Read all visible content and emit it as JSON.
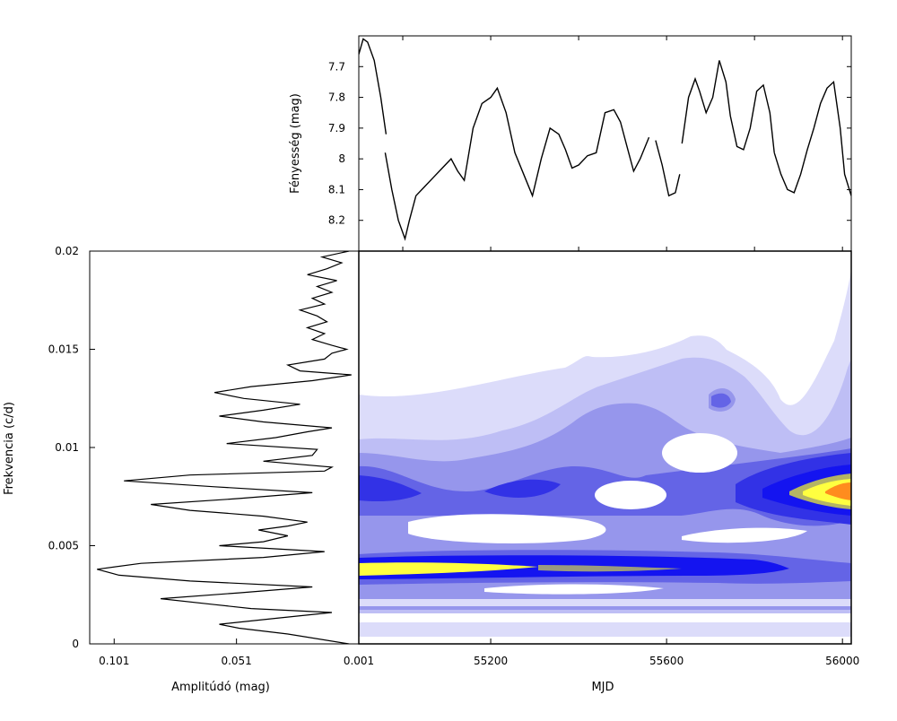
{
  "chart_data": [
    {
      "type": "line",
      "panel": "light-curve",
      "ylabel": "Fényesség (mag)",
      "y_inverted": true,
      "ylim": [
        8.3,
        7.6
      ],
      "xlim": [
        54900,
        56020
      ],
      "y_ticks": [
        "7.7",
        "7.8",
        "7.9",
        "8",
        "8.1",
        "8.2"
      ],
      "y_tick_values": [
        7.7,
        7.8,
        7.9,
        8.0,
        8.1,
        8.2
      ],
      "series": [
        {
          "x": [
            54900,
            54910,
            54920,
            54935,
            54950,
            54962
          ],
          "y": [
            7.66,
            7.61,
            7.62,
            7.68,
            7.8,
            7.92
          ]
        },
        {
          "x": [
            54960,
            54975,
            54990,
            55005,
            55015,
            55030,
            55050,
            55070,
            55090,
            55110,
            55125,
            55140,
            55160,
            55180,
            55200,
            55215,
            55235,
            55255,
            55275,
            55295,
            55315,
            55335,
            55355,
            55370,
            55385,
            55400,
            55420,
            55440,
            55460,
            55480,
            55495,
            55510,
            55525,
            55540,
            55560
          ],
          "y": [
            7.98,
            8.1,
            8.2,
            8.26,
            8.2,
            8.12,
            8.09,
            8.06,
            8.03,
            8.0,
            8.04,
            8.07,
            7.9,
            7.82,
            7.8,
            7.77,
            7.85,
            7.98,
            8.05,
            8.12,
            8.0,
            7.9,
            7.92,
            7.97,
            8.03,
            8.02,
            7.99,
            7.98,
            7.85,
            7.84,
            7.88,
            7.96,
            8.04,
            8.0,
            7.93
          ]
        },
        {
          "x": [
            55575,
            55590,
            55605,
            55620,
            55630
          ],
          "y": [
            7.94,
            8.02,
            8.12,
            8.11,
            8.05
          ]
        },
        {
          "x": [
            55635,
            55650,
            55665,
            55675,
            55690,
            55705,
            55720,
            55735,
            55745,
            55760,
            55775,
            55790,
            55805,
            55820,
            55835,
            55845
          ],
          "y": [
            7.95,
            7.8,
            7.74,
            7.78,
            7.85,
            7.8,
            7.68,
            7.75,
            7.86,
            7.96,
            7.97,
            7.9,
            7.78,
            7.76,
            7.85,
            7.98
          ]
        },
        {
          "x": [
            55845,
            55860,
            55875,
            55890,
            55905,
            55920,
            55935,
            55950,
            55965,
            55980,
            55995,
            56005,
            56020
          ],
          "y": [
            7.98,
            8.05,
            8.1,
            8.11,
            8.05,
            7.97,
            7.9,
            7.82,
            7.77,
            7.75,
            7.9,
            8.05,
            8.12
          ]
        }
      ]
    },
    {
      "type": "line",
      "panel": "amplitude-spectrum",
      "xlabel": "Amplitúdó (mag)",
      "ylabel": "Frekvencia (c/d)",
      "x_inverted": true,
      "xlim": [
        0.111,
        0.001
      ],
      "ylim": [
        0,
        0.02
      ],
      "x_ticks": [
        "0.101",
        "0.051",
        "0.001"
      ],
      "x_tick_values": [
        0.101,
        0.051,
        0.001
      ],
      "y_ticks": [
        "0",
        "0.005",
        "0.01",
        "0.015",
        "0.02"
      ],
      "y_tick_values": [
        0,
        0.005,
        0.01,
        0.015,
        0.02
      ],
      "freq": [
        0,
        0.0005,
        0.0008,
        0.001,
        0.0013,
        0.0016,
        0.0018,
        0.002,
        0.0023,
        0.0026,
        0.0029,
        0.0032,
        0.0035,
        0.0038,
        0.0041,
        0.0044,
        0.0047,
        0.005,
        0.0052,
        0.0055,
        0.0058,
        0.006,
        0.0062,
        0.0065,
        0.0068,
        0.0071,
        0.0074,
        0.0077,
        0.008,
        0.0083,
        0.0086,
        0.0088,
        0.009,
        0.0093,
        0.0096,
        0.0099,
        0.0102,
        0.0105,
        0.0108,
        0.011,
        0.0113,
        0.0116,
        0.0119,
        0.0122,
        0.0125,
        0.0128,
        0.0131,
        0.0134,
        0.0137,
        0.0139,
        0.0142,
        0.0145,
        0.0148,
        0.015,
        0.0152,
        0.0155,
        0.0158,
        0.0161,
        0.0164,
        0.0167,
        0.017,
        0.0173,
        0.0176,
        0.0179,
        0.0182,
        0.0185,
        0.0188,
        0.0191,
        0.0194,
        0.0197,
        0.02
      ],
      "amplitude": [
        0.005,
        0.03,
        0.05,
        0.058,
        0.035,
        0.012,
        0.045,
        0.06,
        0.082,
        0.05,
        0.02,
        0.07,
        0.099,
        0.108,
        0.09,
        0.04,
        0.015,
        0.058,
        0.04,
        0.03,
        0.042,
        0.03,
        0.022,
        0.04,
        0.07,
        0.086,
        0.05,
        0.02,
        0.06,
        0.097,
        0.07,
        0.015,
        0.012,
        0.04,
        0.02,
        0.018,
        0.055,
        0.035,
        0.022,
        0.012,
        0.04,
        0.058,
        0.04,
        0.025,
        0.048,
        0.06,
        0.045,
        0.02,
        0.004,
        0.025,
        0.03,
        0.015,
        0.012,
        0.006,
        0.012,
        0.02,
        0.015,
        0.022,
        0.014,
        0.018,
        0.025,
        0.015,
        0.02,
        0.012,
        0.018,
        0.01,
        0.022,
        0.014,
        0.008,
        0.016,
        0.005
      ]
    },
    {
      "type": "heatmap",
      "panel": "time-frequency",
      "xlabel": "MJD",
      "xlim": [
        54900,
        56020
      ],
      "ylim": [
        0,
        0.02
      ],
      "x_ticks": [
        "55200",
        "55600",
        "56000"
      ],
      "x_tick_values": [
        55200,
        55600,
        56000
      ],
      "levels": [
        "#ffffff",
        "#dcdcfa",
        "#bebef5",
        "#9696ec",
        "#6464e6",
        "#3232e6",
        "#1414f0",
        "#ffff40",
        "#ff8c1e"
      ]
    }
  ]
}
